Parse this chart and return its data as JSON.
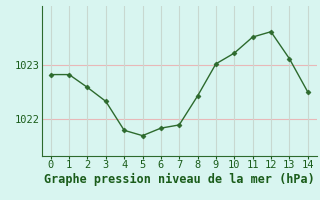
{
  "x": [
    0,
    1,
    2,
    3,
    4,
    5,
    6,
    7,
    8,
    9,
    10,
    11,
    12,
    13,
    14
  ],
  "y": [
    1022.82,
    1022.82,
    1022.58,
    1022.32,
    1021.78,
    1021.68,
    1021.82,
    1021.88,
    1022.42,
    1023.02,
    1023.22,
    1023.52,
    1023.62,
    1023.12,
    1022.5
  ],
  "line_color": "#2d6a2d",
  "marker_color": "#2d6a2d",
  "bg_color": "#d8f5f0",
  "grid_h_color": "#e8b8b8",
  "grid_v_color": "#c8d8d0",
  "xlabel": "Graphe pression niveau de la mer (hPa)",
  "xlabel_color": "#1a5c1a",
  "tick_color": "#1a5c1a",
  "ylim": [
    1021.3,
    1024.1
  ],
  "yticks": [
    1022,
    1023
  ],
  "xticks": [
    0,
    1,
    2,
    3,
    4,
    5,
    6,
    7,
    8,
    9,
    10,
    11,
    12,
    13,
    14
  ],
  "axis_fontsize": 7.5,
  "xlabel_fontsize": 8.5
}
